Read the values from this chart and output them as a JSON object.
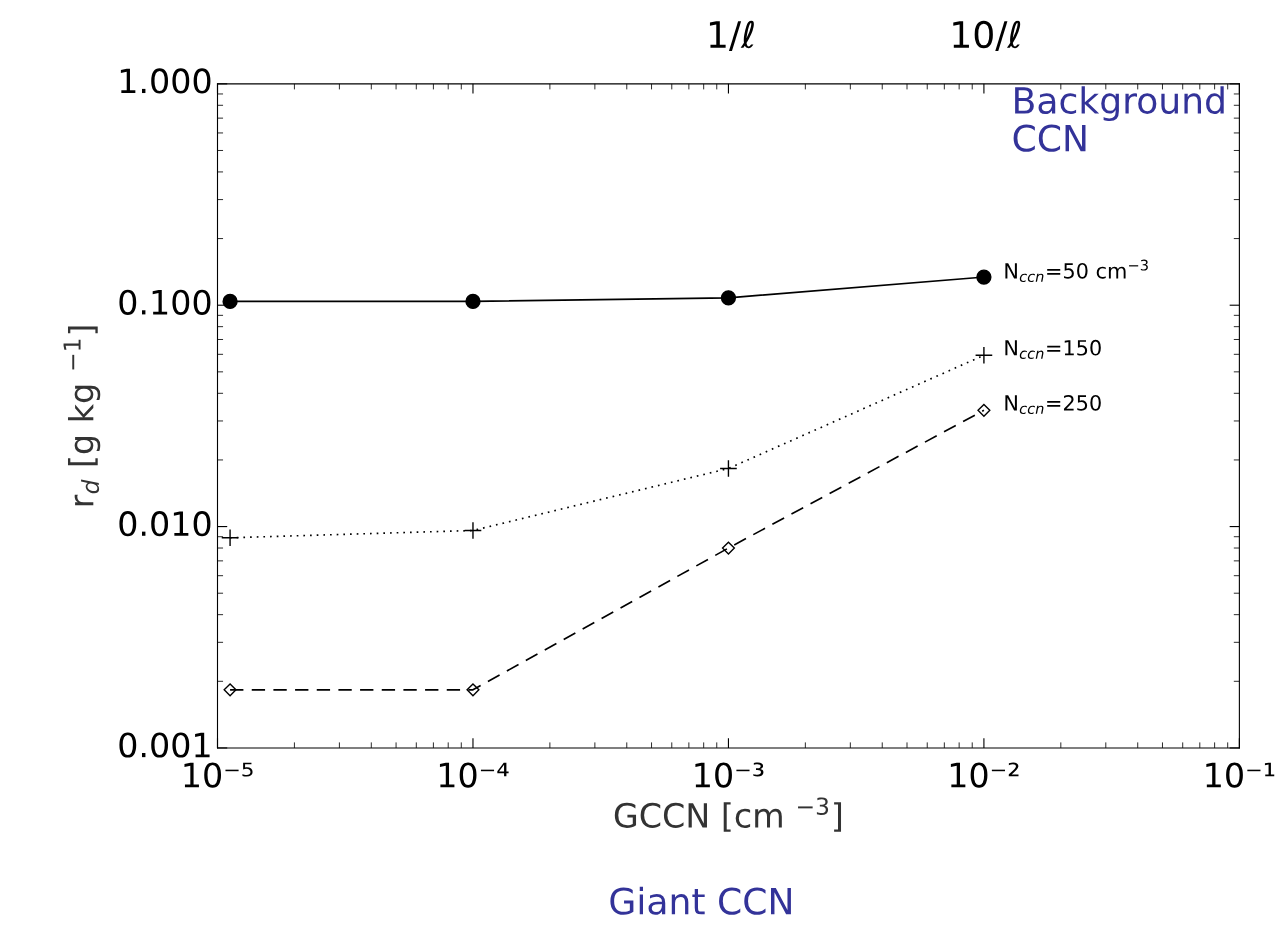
{
  "chart_data": {
    "type": "line",
    "xlabel": "GCCN [cm $^{−3}$]",
    "ylabel": "r$_{d}$ [g kg $^{−1}$]",
    "log": "xy",
    "xlim": [
      1e-05,
      0.1
    ],
    "ylim": [
      0.001,
      1
    ],
    "xticks": [
      {
        "value": 1e-05,
        "label": "10⁻⁵"
      },
      {
        "value": 0.0001,
        "label": "10⁻⁴"
      },
      {
        "value": 0.001,
        "label": "10⁻³"
      },
      {
        "value": 0.01,
        "label": "10⁻²"
      },
      {
        "value": 0.1,
        "label": "10⁻¹"
      }
    ],
    "yticks": [
      {
        "value": 0.001,
        "label": "0.001"
      },
      {
        "value": 0.01,
        "label": "0.010"
      },
      {
        "value": 0.1,
        "label": "0.100"
      },
      {
        "value": 1,
        "label": "1.000"
      }
    ],
    "grid": false,
    "legend": false,
    "x": [
      1.12e-05,
      0.0001,
      0.001,
      0.01
    ],
    "series": [
      {
        "name": "N$_{ccn}$=50 cm$^{−3}$",
        "color": "#000000",
        "marker": "circle",
        "line_style": "solid",
        "values": [
          0.104,
          0.104,
          0.108,
          0.134
        ]
      },
      {
        "name": "N$_{ccn}$=150",
        "color": "#000000",
        "marker": "cross",
        "line_style": "dotted",
        "values": [
          0.0089,
          0.0096,
          0.0183,
          0.0594
        ]
      },
      {
        "name": "N$_{ccn}$=250",
        "color": "#000000",
        "marker": "diamond",
        "line_style": "dashed",
        "values": [
          0.00183,
          0.00183,
          0.008,
          0.0335
        ]
      }
    ],
    "annotations": [
      "1/ℓ",
      "10/ℓ",
      "Background\nCCN",
      "Giant CCN"
    ]
  }
}
